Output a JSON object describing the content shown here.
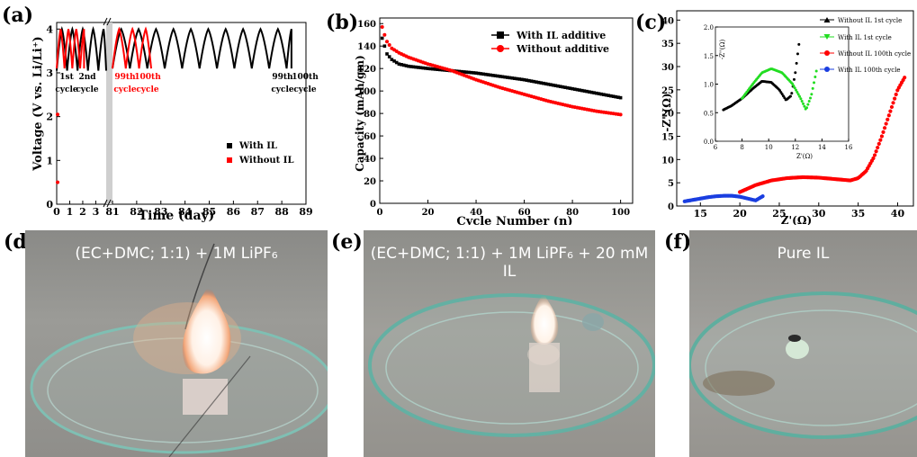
{
  "panels": {
    "a": "(a)",
    "b": "(b)",
    "c": "(c)",
    "d": "(d)",
    "e": "(e)",
    "f": "(f)"
  },
  "colors": {
    "with_il": "#000000",
    "without_il": "#ff0000",
    "inset_green": "#22dd22",
    "inset_blue": "#1a3ee0"
  },
  "chart_data": [
    {
      "id": "a",
      "type": "line",
      "xlabel": "Time (day)",
      "ylabel": "Voltage (V vs. Li/Li⁺)",
      "xticks": [
        "0",
        "1",
        "2",
        "3",
        "81",
        "82",
        "83",
        "84",
        "85",
        "86",
        "87",
        "88",
        "89"
      ],
      "yticks": [
        "0",
        "1",
        "2",
        "3",
        "4"
      ],
      "ylim": [
        0,
        4.15
      ],
      "axis_break": "between 3.8 and 81",
      "series": [
        {
          "name": "With IL",
          "description": "charge/discharge cycling between 3.0 V and 4.0 V",
          "cycle_period_days_early": 0.8,
          "cycle_period_days_late": 0.72
        },
        {
          "name": "Without IL",
          "description": "charge/discharge cycling between 3.0 V and 4.0 V",
          "cycle_period_days_early": 0.6,
          "cycle_period_days_late": 0.55
        }
      ],
      "annotations": [
        {
          "text": "1st",
          "sub": "cycle"
        },
        {
          "text": "2nd",
          "sub": "cycle"
        },
        {
          "text": "99th",
          "sub": "cycle",
          "color": "red"
        },
        {
          "text": "100th",
          "sub": "cycle",
          "color": "red"
        },
        {
          "text": "99th",
          "sub": "cycle"
        },
        {
          "text": "100th",
          "sub": "cycle"
        }
      ],
      "legend": [
        "With IL",
        "Without IL"
      ],
      "legend_position": "bottom-right"
    },
    {
      "id": "b",
      "type": "scatter",
      "xlabel": "Cycle Number (n)",
      "ylabel": "Capacity (mAh/gm)",
      "xlim": [
        0,
        105
      ],
      "ylim": [
        0,
        165
      ],
      "xticks": [
        0,
        20,
        40,
        60,
        80,
        100
      ],
      "yticks": [
        0,
        20,
        40,
        60,
        80,
        100,
        120,
        140,
        160
      ],
      "series": [
        {
          "name": "With IL additive",
          "x": [
            1,
            2,
            3,
            5,
            8,
            12,
            20,
            30,
            40,
            50,
            60,
            70,
            80,
            90,
            100
          ],
          "values": [
            147,
            140,
            133,
            128,
            124,
            122,
            120,
            118,
            116,
            113,
            110,
            106,
            102,
            98,
            94
          ]
        },
        {
          "name": "Without additive",
          "x": [
            1,
            2,
            3,
            5,
            8,
            12,
            20,
            30,
            40,
            50,
            60,
            70,
            80,
            90,
            100
          ],
          "values": [
            157,
            150,
            144,
            138,
            134,
            130,
            124,
            118,
            110,
            103,
            97,
            91,
            86,
            82,
            79
          ]
        }
      ],
      "legend_position": "top-right"
    },
    {
      "id": "c",
      "type": "scatter",
      "xlabel": "Z'(Ω)",
      "ylabel": "-Z''(Ω)",
      "xlim": [
        12,
        42
      ],
      "ylim": [
        0,
        42
      ],
      "xticks": [
        15,
        20,
        25,
        30,
        35,
        40
      ],
      "yticks": [
        0,
        5,
        10,
        15,
        20,
        25,
        30,
        35,
        40
      ],
      "series": [
        {
          "name": "Without IL 100th cycle",
          "x": [
            20,
            22,
            24,
            26,
            28,
            30,
            32,
            34,
            35,
            36,
            37,
            38,
            39,
            40,
            41
          ],
          "values": [
            3,
            4.5,
            5.5,
            6,
            6.2,
            6.1,
            5.8,
            5.5,
            6,
            7.5,
            10.5,
            15,
            20,
            25,
            28
          ]
        },
        {
          "name": "With IL 100th cycle",
          "x": [
            13,
            14,
            15,
            16,
            17,
            18,
            19,
            20,
            21,
            22,
            23
          ],
          "values": [
            1,
            1.3,
            1.6,
            1.9,
            2.1,
            2.2,
            2.2,
            2,
            1.6,
            1.2,
            2.2
          ]
        }
      ],
      "inset": {
        "xlabel": "Z'(Ω)",
        "ylabel": "-Z''(Ω)",
        "xlim": [
          6,
          16
        ],
        "ylim": [
          0,
          2
        ],
        "xticks": [
          6,
          8,
          10,
          12,
          14,
          16
        ],
        "yticks": [
          "0.0",
          "0.5",
          "1.0",
          "1.5",
          "2.0"
        ],
        "series": [
          {
            "name": "Without IL 1st cycle",
            "x": [
              6.6,
              7.2,
              8,
              8.8,
              9.5,
              10.2,
              10.8,
              11.3,
              11.7,
              12.0,
              12.3
            ],
            "values": [
              0.55,
              0.62,
              0.75,
              0.92,
              1.05,
              1.03,
              0.9,
              0.72,
              0.8,
              1.2,
              1.75
            ]
          },
          {
            "name": "With IL 1st cycle",
            "x": [
              8,
              8.8,
              9.5,
              10.2,
              11.0,
              11.8,
              12.4,
              12.8,
              13.2,
              13.6
            ],
            "values": [
              0.75,
              1.0,
              1.2,
              1.27,
              1.2,
              1.0,
              0.75,
              0.55,
              0.8,
              1.25
            ]
          }
        ]
      },
      "legend": [
        "Without IL 1st cycle",
        "With IL 1st cycle",
        "Without IL 100th cycle",
        "With IL 100th cycle"
      ],
      "legend_position": "top-right"
    }
  ],
  "photos": {
    "d": "(EC+DMC; 1:1) + 1M LiPF₆",
    "e": "(EC+DMC; 1:1) + 1M LiPF₆ + 20 mM IL",
    "f": "Pure IL"
  }
}
